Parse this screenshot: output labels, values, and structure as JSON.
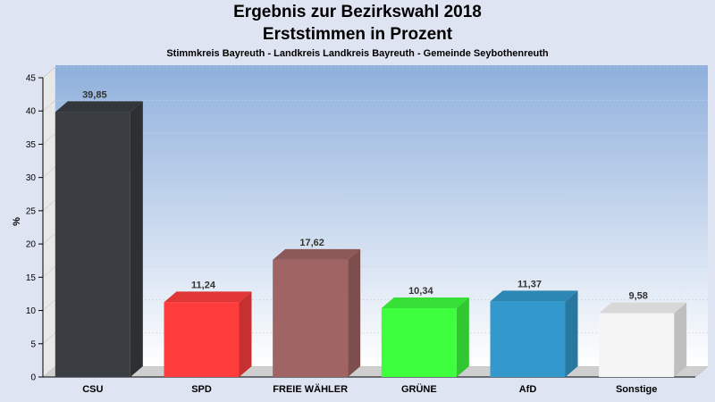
{
  "chart_data": {
    "type": "bar",
    "title": "Ergebnis zur Bezirkswahl 2018",
    "subtitle": "Erststimmen in Prozent",
    "caption": "Stimmkreis Bayreuth - Landkreis Landkreis Bayreuth - Gemeinde Seybothenreuth",
    "ylabel": "%",
    "xlabel": "",
    "ylim": [
      0,
      45
    ],
    "yticks": [
      0,
      5,
      10,
      15,
      20,
      25,
      30,
      35,
      40,
      45
    ],
    "categories": [
      "CSU",
      "SPD",
      "FREIE WÄHLER",
      "GRÜNE",
      "AfD",
      "Sonstige"
    ],
    "values": [
      39.85,
      11.24,
      17.62,
      10.34,
      11.37,
      9.58
    ],
    "value_labels": [
      "39,85",
      "11,24",
      "17,62",
      "10,34",
      "11,37",
      "9,58"
    ],
    "colors": [
      "#3a3d42",
      "#ff3d3d",
      "#a06464",
      "#3dff3d",
      "#3399cc",
      "#f5f5f5"
    ],
    "grid": true
  }
}
